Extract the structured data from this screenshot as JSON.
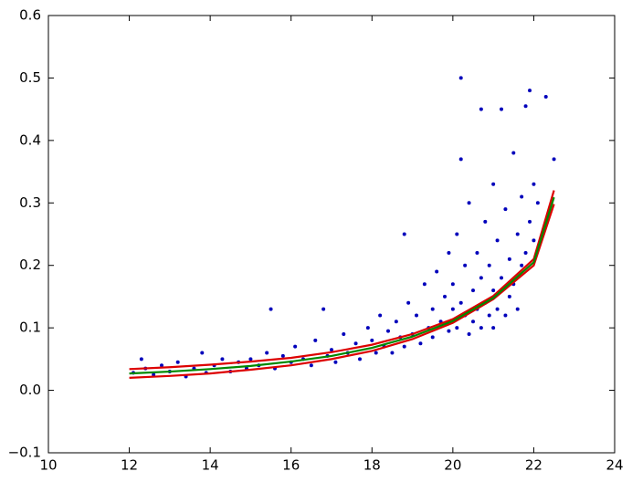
{
  "chart_data": {
    "type": "scatter",
    "xlim": [
      10,
      24
    ],
    "ylim": [
      -0.1,
      0.6
    ],
    "xticks": [
      10,
      12,
      14,
      16,
      18,
      20,
      22,
      24
    ],
    "yticks": [
      {
        "value": -0.1,
        "label": "−0.1"
      },
      {
        "value": 0,
        "label": "0.0"
      },
      0.1,
      0.2,
      0.3,
      0.4,
      0.5,
      0.6
    ],
    "grid": false,
    "series": [
      {
        "style": "points",
        "color": "#0000bb",
        "x": [
          12.1,
          12.3,
          12.4,
          12.6,
          12.8,
          13.0,
          13.2,
          13.4,
          13.6,
          13.8,
          13.9,
          14.1,
          14.3,
          14.5,
          14.7,
          14.9,
          15.0,
          15.2,
          15.4,
          15.5,
          15.6,
          15.8,
          16.0,
          16.1,
          16.3,
          16.5,
          16.6,
          16.8,
          16.9,
          17.0,
          17.1,
          17.3,
          17.4,
          17.6,
          17.7,
          17.9,
          18.0,
          18.1,
          18.2,
          18.3,
          18.4,
          18.5,
          18.6,
          18.7,
          18.8,
          18.8,
          18.9,
          19.0,
          19.1,
          19.2,
          19.3,
          19.4,
          19.5,
          19.5,
          19.6,
          19.7,
          19.8,
          19.9,
          19.9,
          20.0,
          20.0,
          20.1,
          20.1,
          20.2,
          20.2,
          20.2,
          20.3,
          20.3,
          20.4,
          20.4,
          20.5,
          20.5,
          20.6,
          20.6,
          20.7,
          20.7,
          20.7,
          20.8,
          20.8,
          20.9,
          20.9,
          21.0,
          21.0,
          21.0,
          21.1,
          21.1,
          21.2,
          21.2,
          21.3,
          21.3,
          21.4,
          21.4,
          21.5,
          21.5,
          21.6,
          21.6,
          21.7,
          21.7,
          21.8,
          21.8,
          21.9,
          21.9,
          22.0,
          22.0,
          22.1,
          22.3,
          22.5
        ],
        "values": [
          0.028,
          0.05,
          0.035,
          0.025,
          0.04,
          0.03,
          0.045,
          0.022,
          0.035,
          0.06,
          0.028,
          0.04,
          0.05,
          0.03,
          0.045,
          0.035,
          0.05,
          0.04,
          0.06,
          0.13,
          0.035,
          0.055,
          0.045,
          0.07,
          0.05,
          0.04,
          0.08,
          0.13,
          0.055,
          0.065,
          0.045,
          0.09,
          0.06,
          0.075,
          0.05,
          0.1,
          0.08,
          0.06,
          0.12,
          0.07,
          0.095,
          0.06,
          0.11,
          0.085,
          0.25,
          0.07,
          0.14,
          0.09,
          0.12,
          0.075,
          0.17,
          0.1,
          0.13,
          0.085,
          0.19,
          0.11,
          0.15,
          0.095,
          0.22,
          0.13,
          0.17,
          0.1,
          0.25,
          0.5,
          0.37,
          0.14,
          0.12,
          0.2,
          0.09,
          0.3,
          0.16,
          0.11,
          0.22,
          0.13,
          0.45,
          0.18,
          0.1,
          0.27,
          0.14,
          0.12,
          0.2,
          0.33,
          0.16,
          0.1,
          0.24,
          0.13,
          0.45,
          0.18,
          0.29,
          0.12,
          0.21,
          0.15,
          0.38,
          0.17,
          0.25,
          0.13,
          0.31,
          0.2,
          0.455,
          0.22,
          0.48,
          0.27,
          0.33,
          0.24,
          0.3,
          0.47,
          0.37
        ]
      },
      {
        "style": "line",
        "color": "#dd0000",
        "x": [
          12,
          13,
          14,
          15,
          16,
          17,
          18,
          19,
          20,
          21,
          22,
          22.5
        ],
        "values": [
          0.034,
          0.037,
          0.041,
          0.046,
          0.052,
          0.061,
          0.073,
          0.09,
          0.114,
          0.151,
          0.21,
          0.32
        ]
      },
      {
        "style": "line",
        "color": "#dd0000",
        "x": [
          12,
          13,
          14,
          15,
          16,
          17,
          18,
          19,
          20,
          21,
          22,
          22.5
        ],
        "values": [
          0.02,
          0.023,
          0.027,
          0.033,
          0.04,
          0.05,
          0.063,
          0.082,
          0.108,
          0.146,
          0.2,
          0.298
        ]
      },
      {
        "style": "line",
        "color": "#008800",
        "x": [
          12,
          13,
          14,
          15,
          16,
          17,
          18,
          19,
          20,
          21,
          22,
          22.5
        ],
        "values": [
          0.027,
          0.03,
          0.034,
          0.039,
          0.046,
          0.055,
          0.068,
          0.086,
          0.111,
          0.148,
          0.205,
          0.309
        ]
      }
    ]
  }
}
